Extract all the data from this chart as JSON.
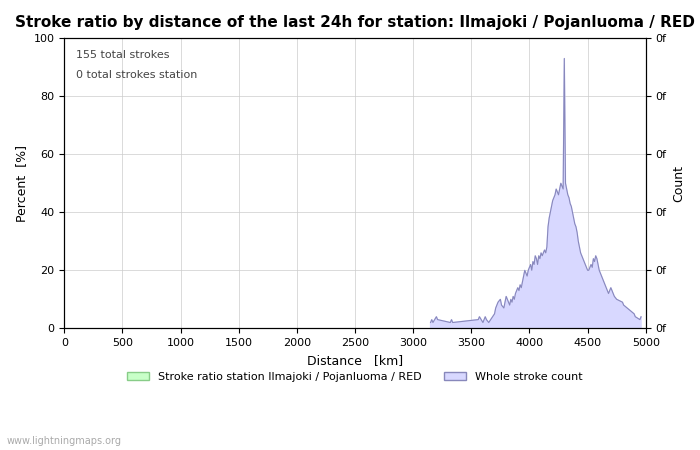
{
  "title": "Stroke ratio by distance of the last 24h for station: Ilmajoki / Pojanluoma / RED",
  "xlabel": "Distance   [km]",
  "ylabel_left": "Percent  [%]",
  "ylabel_right": "Count",
  "annotation_line1": "155 total strokes",
  "annotation_line2": "0 total strokes station",
  "xlim": [
    0,
    5000
  ],
  "ylim": [
    0,
    100
  ],
  "xticks": [
    0,
    500,
    1000,
    1500,
    2000,
    2500,
    3000,
    3500,
    4000,
    4500,
    5000
  ],
  "yticks_left": [
    0,
    20,
    40,
    60,
    80,
    100
  ],
  "yticks_right": [
    "0f",
    "0f",
    "0f",
    "0f",
    "0f",
    "0f"
  ],
  "legend_label_green": "Stroke ratio station Ilmajoki / Pojanluoma / RED",
  "legend_label_blue": "Whole stroke count",
  "watermark": "www.lightningmaps.org",
  "background_color": "#ffffff",
  "plot_bg_color": "#ffffff",
  "grid_color": "#cccccc",
  "title_fontsize": 11,
  "axis_fontsize": 9,
  "tick_fontsize": 8,
  "whole_stroke_fill_color": "#d8d8ff",
  "whole_stroke_line_color": "#8888bb",
  "stroke_ratio_fill_color": "#c8ffc8",
  "stroke_ratio_line_color": "#88cc88",
  "whole_stroke_x": [
    3150,
    3160,
    3170,
    3200,
    3210,
    3320,
    3330,
    3340,
    3560,
    3570,
    3600,
    3610,
    3620,
    3630,
    3650,
    3700,
    3710,
    3720,
    3730,
    3750,
    3760,
    3780,
    3790,
    3800,
    3810,
    3820,
    3830,
    3840,
    3850,
    3860,
    3870,
    3880,
    3890,
    3900,
    3910,
    3920,
    3930,
    3940,
    3950,
    3960,
    3970,
    3980,
    3990,
    4000,
    4010,
    4020,
    4030,
    4040,
    4050,
    4060,
    4070,
    4080,
    4090,
    4100,
    4110,
    4120,
    4130,
    4140,
    4150,
    4160,
    4170,
    4180,
    4190,
    4200,
    4210,
    4220,
    4230,
    4240,
    4250,
    4260,
    4270,
    4280,
    4290,
    4300,
    4310,
    4320,
    4330,
    4340,
    4350,
    4360,
    4370,
    4380,
    4390,
    4400,
    4410,
    4420,
    4430,
    4440,
    4450,
    4460,
    4470,
    4480,
    4490,
    4500,
    4510,
    4520,
    4530,
    4540,
    4550,
    4560,
    4570,
    4580,
    4590,
    4600,
    4610,
    4620,
    4630,
    4640,
    4650,
    4660,
    4670,
    4680,
    4700,
    4710,
    4720,
    4730,
    4750,
    4800,
    4810,
    4900,
    4910,
    4950,
    4960
  ],
  "whole_stroke_y": [
    2,
    3,
    2,
    4,
    3,
    2,
    3,
    2,
    3,
    4,
    2,
    3,
    4,
    3,
    2,
    5,
    7,
    8,
    9,
    10,
    8,
    7,
    9,
    11,
    10,
    9,
    8,
    10,
    9,
    11,
    10,
    12,
    13,
    14,
    13,
    15,
    14,
    16,
    18,
    20,
    19,
    18,
    20,
    21,
    22,
    20,
    23,
    22,
    25,
    24,
    22,
    25,
    24,
    26,
    25,
    26,
    27,
    26,
    28,
    35,
    38,
    40,
    42,
    44,
    45,
    46,
    48,
    47,
    46,
    48,
    50,
    49,
    48,
    93,
    50,
    48,
    46,
    45,
    43,
    42,
    40,
    38,
    36,
    35,
    33,
    30,
    28,
    26,
    25,
    24,
    23,
    22,
    21,
    20,
    20,
    21,
    22,
    21,
    24,
    23,
    25,
    24,
    22,
    20,
    19,
    18,
    17,
    16,
    15,
    14,
    13,
    12,
    14,
    13,
    12,
    11,
    10,
    9,
    8,
    5,
    4,
    3,
    4
  ]
}
